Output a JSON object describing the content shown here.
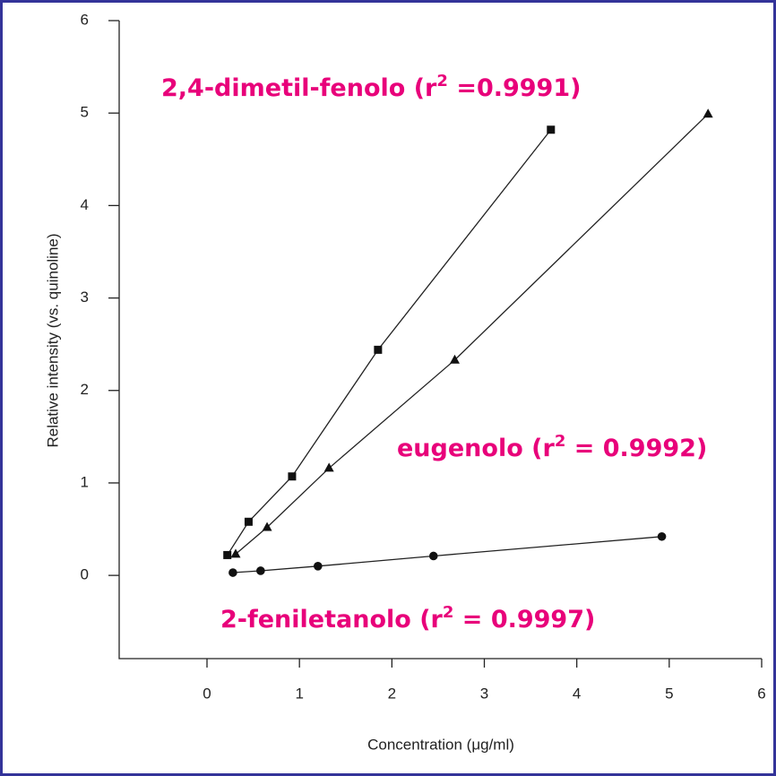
{
  "chart_data": {
    "type": "scatter",
    "x_label": "Concentration (μg/ml)",
    "y_label": "Relative intensity (vs. quinoline)",
    "xlim": [
      -0.95,
      6
    ],
    "ylim": [
      -0.9,
      6
    ],
    "xticks": [
      0,
      1,
      2,
      3,
      4,
      5,
      6
    ],
    "yticks": [
      0,
      1,
      2,
      3,
      4,
      5,
      6
    ],
    "series": [
      {
        "marker": "square",
        "color": "#111111",
        "x": [
          0.22,
          0.45,
          0.92,
          1.85,
          3.72
        ],
        "values": [
          0.22,
          0.58,
          1.07,
          2.44,
          4.82
        ]
      },
      {
        "marker": "triangle",
        "color": "#111111",
        "x": [
          0.31,
          0.65,
          1.32,
          2.68,
          5.42
        ],
        "values": [
          0.23,
          0.52,
          1.16,
          2.33,
          4.99
        ]
      },
      {
        "marker": "circle",
        "color": "#111111",
        "x": [
          0.28,
          0.58,
          1.2,
          2.45,
          4.92
        ],
        "values": [
          0.03,
          0.05,
          0.1,
          0.21,
          0.42
        ]
      }
    ],
    "annotations": [
      {
        "text": "2,4-dimetil-fenolo (r",
        "sup": "2",
        "after": " =0.9991)"
      },
      {
        "text": "eugenolo (r",
        "sup": "2",
        "after": " = 0.9992)"
      },
      {
        "text": "2-feniletanolo (r",
        "sup": "2",
        "after": " = 0.9997)"
      }
    ]
  }
}
